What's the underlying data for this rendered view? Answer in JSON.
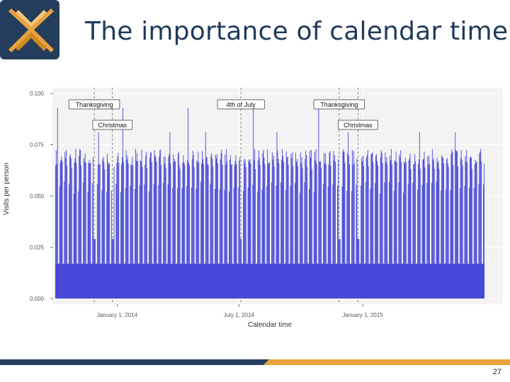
{
  "slide": {
    "title": "The importance of calendar time",
    "page_number": "27"
  },
  "colors": {
    "bar": "#4848d8",
    "title": "#1f3a5a",
    "logo_dark": "#243d5c",
    "logo_gold": "#e8a33d",
    "footer_navy": "#243d5c",
    "footer_gold": "#e8a33d"
  },
  "chart_data": {
    "type": "bar",
    "title": "",
    "xlabel": "Calendar time",
    "ylabel": "Visits per person",
    "ylim": [
      0,
      0.1
    ],
    "yticks": [
      0.0,
      0.025,
      0.05,
      0.075,
      0.1
    ],
    "ytick_labels": [
      "0.000",
      "0.025",
      "0.050",
      "0.075",
      "0.100"
    ],
    "x_range": [
      "2013-10-01",
      "2015-07-01"
    ],
    "xticks": [
      {
        "date": "2014-01-01",
        "label": "January 1, 2014"
      },
      {
        "date": "2014-07-01",
        "label": "July 1, 2014"
      },
      {
        "date": "2015-01-01",
        "label": "January 1, 2015"
      }
    ],
    "weekday_level": 0.069,
    "weekend_level": 0.017,
    "mid_level": 0.054,
    "annotations": [
      {
        "date": "2013-11-28",
        "label": "Thanksgiving",
        "row": 1
      },
      {
        "date": "2013-12-25",
        "label": "Christmas",
        "row": 2
      },
      {
        "date": "2014-07-04",
        "label": "4th of July",
        "row": 1
      },
      {
        "date": "2014-11-27",
        "label": "Thanksgiving",
        "row": 1
      },
      {
        "date": "2014-12-25",
        "label": "Christmas",
        "row": 2
      }
    ]
  }
}
